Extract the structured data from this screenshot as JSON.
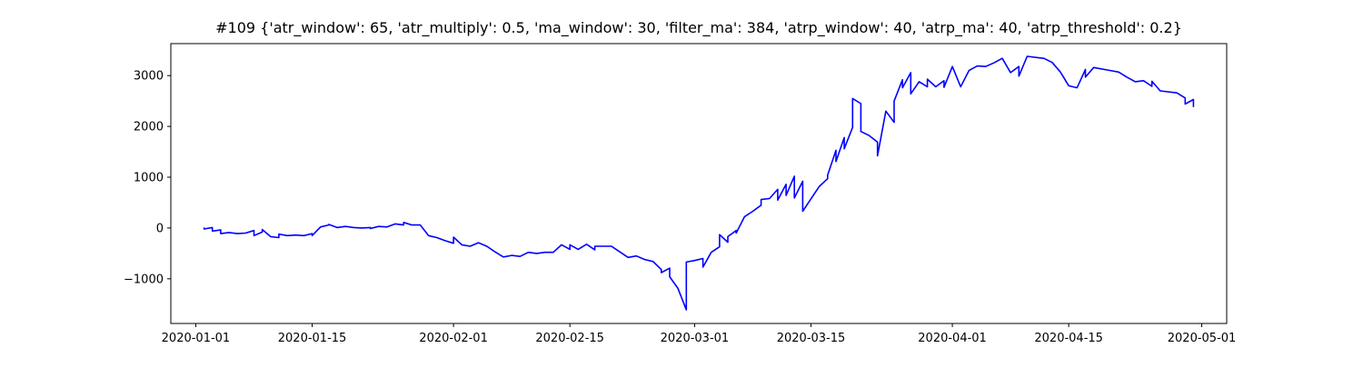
{
  "chart_data": {
    "type": "line",
    "title": "#109 {'atr_window': 65, 'atr_multiply': 0.5, 'ma_window': 30, 'filter_ma': 384, 'atrp_window': 40, 'atrp_ma': 40, 'atrp_threshold': 0.2}",
    "xlabel": "",
    "ylabel": "",
    "grid": false,
    "legend": "none",
    "x_axis_kind": "date",
    "xlim": [
      "2019-12-29",
      "2020-05-04"
    ],
    "ylim": [
      -1880,
      3630
    ],
    "x_ticks": [
      "2020-01-01",
      "2020-01-15",
      "2020-02-01",
      "2020-02-15",
      "2020-03-01",
      "2020-03-15",
      "2020-04-01",
      "2020-04-15",
      "2020-05-01"
    ],
    "y_ticks": [
      {
        "value": -1000,
        "label": "−1000"
      },
      {
        "value": 0,
        "label": "0"
      },
      {
        "value": 1000,
        "label": "1000"
      },
      {
        "value": 2000,
        "label": "2000"
      },
      {
        "value": 3000,
        "label": "3000"
      }
    ],
    "series": [
      {
        "color": "#0000ff",
        "points": [
          [
            "2020-01-02",
            0
          ],
          [
            "2020-01-02",
            -20
          ],
          [
            "2020-01-03",
            10
          ],
          [
            "2020-01-03",
            -60
          ],
          [
            "2020-01-04",
            -40
          ],
          [
            "2020-01-04",
            -110
          ],
          [
            "2020-01-05",
            -90
          ],
          [
            "2020-01-06",
            -110
          ],
          [
            "2020-01-07",
            -100
          ],
          [
            "2020-01-08",
            -50
          ],
          [
            "2020-01-08",
            -150
          ],
          [
            "2020-01-09",
            -80
          ],
          [
            "2020-01-09",
            -30
          ],
          [
            "2020-01-10",
            -170
          ],
          [
            "2020-01-11",
            -190
          ],
          [
            "2020-01-11",
            -120
          ],
          [
            "2020-01-12",
            -150
          ],
          [
            "2020-01-13",
            -140
          ],
          [
            "2020-01-14",
            -150
          ],
          [
            "2020-01-15",
            -110
          ],
          [
            "2020-01-15",
            -150
          ],
          [
            "2020-01-16",
            20
          ],
          [
            "2020-01-17",
            60
          ],
          [
            "2020-01-17",
            70
          ],
          [
            "2020-01-18",
            10
          ],
          [
            "2020-01-19",
            30
          ],
          [
            "2020-01-20",
            10
          ],
          [
            "2020-01-21",
            0
          ],
          [
            "2020-01-22",
            10
          ],
          [
            "2020-01-22",
            -10
          ],
          [
            "2020-01-23",
            30
          ],
          [
            "2020-01-24",
            20
          ],
          [
            "2020-01-25",
            80
          ],
          [
            "2020-01-26",
            60
          ],
          [
            "2020-01-26",
            110
          ],
          [
            "2020-01-27",
            60
          ],
          [
            "2020-01-28",
            60
          ],
          [
            "2020-01-29",
            -150
          ],
          [
            "2020-01-30",
            -190
          ],
          [
            "2020-01-31",
            -250
          ],
          [
            "2020-02-01",
            -300
          ],
          [
            "2020-02-01",
            -180
          ],
          [
            "2020-02-02",
            -330
          ],
          [
            "2020-02-03",
            -360
          ],
          [
            "2020-02-04",
            -290
          ],
          [
            "2020-02-05",
            -360
          ],
          [
            "2020-02-06",
            -470
          ],
          [
            "2020-02-07",
            -570
          ],
          [
            "2020-02-08",
            -540
          ],
          [
            "2020-02-09",
            -560
          ],
          [
            "2020-02-10",
            -480
          ],
          [
            "2020-02-11",
            -500
          ],
          [
            "2020-02-12",
            -480
          ],
          [
            "2020-02-13",
            -480
          ],
          [
            "2020-02-14",
            -330
          ],
          [
            "2020-02-15",
            -420
          ],
          [
            "2020-02-15",
            -330
          ],
          [
            "2020-02-16",
            -420
          ],
          [
            "2020-02-17",
            -320
          ],
          [
            "2020-02-18",
            -430
          ],
          [
            "2020-02-18",
            -360
          ],
          [
            "2020-02-20",
            -360
          ],
          [
            "2020-02-21",
            -470
          ],
          [
            "2020-02-22",
            -580
          ],
          [
            "2020-02-23",
            -550
          ],
          [
            "2020-02-24",
            -620
          ],
          [
            "2020-02-25",
            -660
          ],
          [
            "2020-02-26",
            -820
          ],
          [
            "2020-02-26",
            -880
          ],
          [
            "2020-02-27",
            -790
          ],
          [
            "2020-02-27",
            -960
          ],
          [
            "2020-02-28",
            -1190
          ],
          [
            "2020-02-29",
            -1610
          ],
          [
            "2020-02-29",
            -1200
          ],
          [
            "2020-02-29",
            -670
          ],
          [
            "2020-03-01",
            -640
          ],
          [
            "2020-03-02",
            -600
          ],
          [
            "2020-03-02",
            -770
          ],
          [
            "2020-03-03",
            -480
          ],
          [
            "2020-03-04",
            -370
          ],
          [
            "2020-03-04",
            -130
          ],
          [
            "2020-03-05",
            -280
          ],
          [
            "2020-03-05",
            -170
          ],
          [
            "2020-03-06",
            -50
          ],
          [
            "2020-03-06",
            -100
          ],
          [
            "2020-03-07",
            220
          ],
          [
            "2020-03-08",
            330
          ],
          [
            "2020-03-09",
            450
          ],
          [
            "2020-03-09",
            560
          ],
          [
            "2020-03-10",
            580
          ],
          [
            "2020-03-11",
            760
          ],
          [
            "2020-03-11",
            550
          ],
          [
            "2020-03-12",
            860
          ],
          [
            "2020-03-12",
            640
          ],
          [
            "2020-03-13",
            1020
          ],
          [
            "2020-03-13",
            590
          ],
          [
            "2020-03-14",
            920
          ],
          [
            "2020-03-14",
            560
          ],
          [
            "2020-03-14",
            330
          ],
          [
            "2020-03-16",
            820
          ],
          [
            "2020-03-17",
            970
          ],
          [
            "2020-03-17",
            1040
          ],
          [
            "2020-03-18",
            1530
          ],
          [
            "2020-03-18",
            1310
          ],
          [
            "2020-03-19",
            1780
          ],
          [
            "2020-03-19",
            1560
          ],
          [
            "2020-03-20",
            1980
          ],
          [
            "2020-03-20",
            2100
          ],
          [
            "2020-03-20",
            2550
          ],
          [
            "2020-03-21",
            2450
          ],
          [
            "2020-03-21",
            1900
          ],
          [
            "2020-03-22",
            1820
          ],
          [
            "2020-03-23",
            1690
          ],
          [
            "2020-03-23",
            1420
          ],
          [
            "2020-03-24",
            2300
          ],
          [
            "2020-03-25",
            2080
          ],
          [
            "2020-03-25",
            2500
          ],
          [
            "2020-03-26",
            2920
          ],
          [
            "2020-03-26",
            2760
          ],
          [
            "2020-03-27",
            3060
          ],
          [
            "2020-03-27",
            2640
          ],
          [
            "2020-03-28",
            2880
          ],
          [
            "2020-03-29",
            2780
          ],
          [
            "2020-03-29",
            2930
          ],
          [
            "2020-03-30",
            2780
          ],
          [
            "2020-03-31",
            2900
          ],
          [
            "2020-03-31",
            2770
          ],
          [
            "2020-04-01",
            3180
          ],
          [
            "2020-04-02",
            2780
          ],
          [
            "2020-04-03",
            3100
          ],
          [
            "2020-04-04",
            3190
          ],
          [
            "2020-04-05",
            3180
          ],
          [
            "2020-04-06",
            3250
          ],
          [
            "2020-04-07",
            3340
          ],
          [
            "2020-04-08",
            3060
          ],
          [
            "2020-04-09",
            3180
          ],
          [
            "2020-04-09",
            2990
          ],
          [
            "2020-04-10",
            3380
          ],
          [
            "2020-04-12",
            3340
          ],
          [
            "2020-04-13",
            3260
          ],
          [
            "2020-04-14",
            3070
          ],
          [
            "2020-04-15",
            2800
          ],
          [
            "2020-04-16",
            2760
          ],
          [
            "2020-04-17",
            3120
          ],
          [
            "2020-04-17",
            2970
          ],
          [
            "2020-04-18",
            3160
          ],
          [
            "2020-04-20",
            3100
          ],
          [
            "2020-04-21",
            3070
          ],
          [
            "2020-04-22",
            2970
          ],
          [
            "2020-04-23",
            2880
          ],
          [
            "2020-04-24",
            2900
          ],
          [
            "2020-04-25",
            2790
          ],
          [
            "2020-04-25",
            2890
          ],
          [
            "2020-04-26",
            2700
          ],
          [
            "2020-04-28",
            2660
          ],
          [
            "2020-04-29",
            2560
          ],
          [
            "2020-04-29",
            2440
          ],
          [
            "2020-04-30",
            2530
          ],
          [
            "2020-04-30",
            2390
          ]
        ]
      }
    ]
  }
}
